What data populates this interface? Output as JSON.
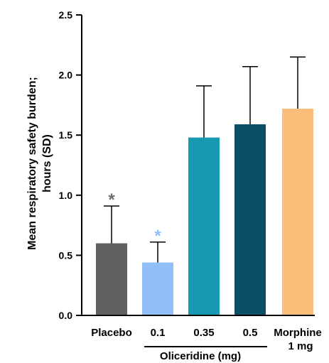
{
  "chart_data": {
    "type": "bar",
    "ylabel_lines": [
      "Mean respiratory safety burden;",
      "hours (SD)"
    ],
    "xlabel": "",
    "ylim": [
      0,
      2.5
    ],
    "y_ticks": [
      "0.0",
      "0.5",
      "1.0",
      "1.5",
      "2.0",
      "2.5"
    ],
    "categories": [
      {
        "label": "Placebo",
        "label2": "",
        "value": 0.6,
        "sd": 0.31,
        "color": "#616161",
        "significance": "*",
        "sig_color": "#707070"
      },
      {
        "label": "0.1",
        "label2": "",
        "value": 0.44,
        "sd": 0.17,
        "color": "#92bff7",
        "significance": "*",
        "sig_color": "#92bff7"
      },
      {
        "label": "0.35",
        "label2": "",
        "value": 1.48,
        "sd": 0.43,
        "color": "#179ab0",
        "significance": "",
        "sig_color": ""
      },
      {
        "label": "0.5",
        "label2": "",
        "value": 1.59,
        "sd": 0.48,
        "color": "#0a4f66",
        "significance": "",
        "sig_color": ""
      },
      {
        "label": "Morphine",
        "label2": "1 mg",
        "value": 1.72,
        "sd": 0.43,
        "color": "#fbbf7b",
        "significance": "",
        "sig_color": ""
      }
    ],
    "group_label": "Oliceridine (mg)"
  }
}
